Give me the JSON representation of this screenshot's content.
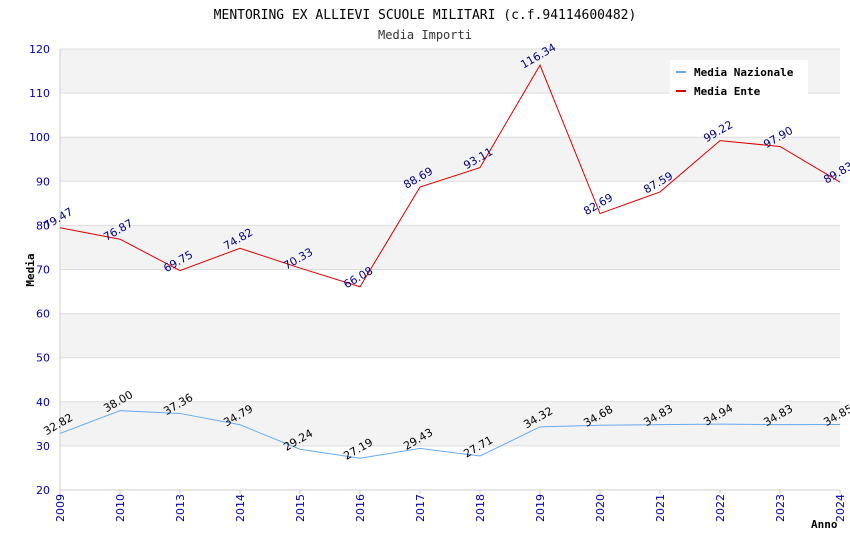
{
  "chart_data": {
    "type": "line",
    "title": "MENTORING EX ALLIEVI SCUOLE MILITARI (c.f.94114600482)",
    "subtitle": "Media Importi",
    "xlabel": "Anno",
    "ylabel": "Media",
    "ylim": [
      20,
      120
    ],
    "y_ticks": [
      "20",
      "30",
      "40",
      "50",
      "60",
      "70",
      "80",
      "90",
      "100",
      "110",
      "120"
    ],
    "categories": [
      "2009",
      "2010",
      "2013",
      "2014",
      "2015",
      "2016",
      "2017",
      "2018",
      "2019",
      "2020",
      "2021",
      "2022",
      "2023",
      "2024"
    ],
    "series": [
      {
        "name": "Media Nazionale",
        "color": "#66aaee",
        "values": [
          32.82,
          38.0,
          37.36,
          34.79,
          29.24,
          27.19,
          29.43,
          27.71,
          34.32,
          34.68,
          34.83,
          34.94,
          34.83,
          34.85
        ],
        "labels": [
          "32.82",
          "38.00",
          "37.36",
          "34.79",
          "29.24",
          "27.19",
          "29.43",
          "27.71",
          "34.32",
          "34.68",
          "34.83",
          "34.94",
          "34.83",
          "34.85"
        ]
      },
      {
        "name": "Media Ente",
        "color": "#dd0000",
        "values": [
          79.47,
          76.87,
          69.75,
          74.82,
          70.33,
          66.08,
          88.69,
          93.11,
          116.34,
          82.69,
          87.59,
          99.22,
          97.9,
          89.83
        ],
        "labels": [
          "79.47",
          "76.87",
          "69.75",
          "74.82",
          "70.33",
          "66.08",
          "88.69",
          "93.11",
          "116.34",
          "82.69",
          "87.59",
          "99.22",
          "97.90",
          "89.83"
        ]
      }
    ],
    "grid": true,
    "legend_position": "top-right"
  }
}
